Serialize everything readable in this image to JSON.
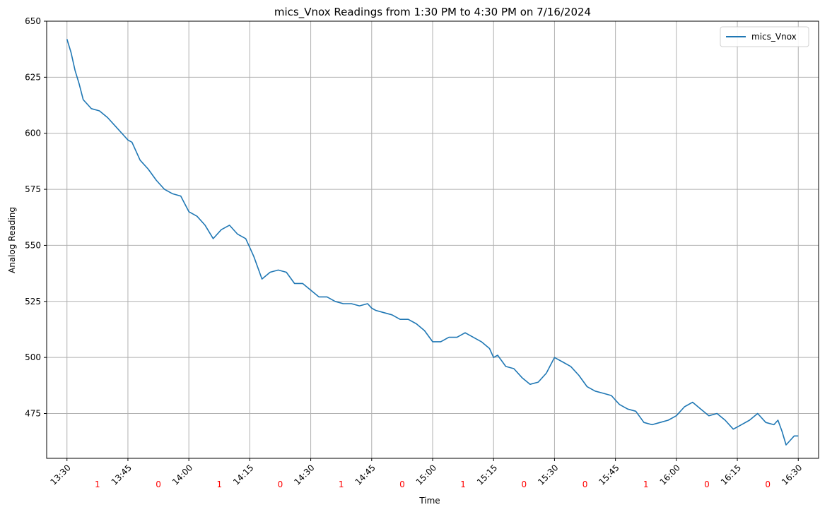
{
  "chart_data": {
    "type": "line",
    "title": "mics_Vnox Readings from 1:30 PM to 4:30 PM on 7/16/2024",
    "xlabel": "Time",
    "ylabel": "Analog Reading",
    "grid": true,
    "legend_position": "top-right",
    "xlim": [
      "13:25",
      "16:35"
    ],
    "ylim": [
      455,
      650
    ],
    "x_ticks": [
      "13:30",
      "13:45",
      "14:00",
      "14:15",
      "14:30",
      "14:45",
      "15:00",
      "15:15",
      "15:30",
      "15:45",
      "16:00",
      "16:15",
      "16:30"
    ],
    "y_ticks": [
      475,
      500,
      525,
      550,
      575,
      600,
      625,
      650
    ],
    "interval_markers": [
      {
        "time": "13:37:30",
        "label": "1"
      },
      {
        "time": "13:52:30",
        "label": "0"
      },
      {
        "time": "14:07:30",
        "label": "1"
      },
      {
        "time": "14:22:30",
        "label": "0"
      },
      {
        "time": "14:37:30",
        "label": "1"
      },
      {
        "time": "14:52:30",
        "label": "0"
      },
      {
        "time": "15:07:30",
        "label": "1"
      },
      {
        "time": "15:22:30",
        "label": "0"
      },
      {
        "time": "15:37:30",
        "label": "0"
      },
      {
        "time": "15:52:30",
        "label": "1"
      },
      {
        "time": "16:07:30",
        "label": "0"
      },
      {
        "time": "16:22:30",
        "label": "0"
      }
    ],
    "series": [
      {
        "name": "mics_Vnox",
        "color": "#1f77b4",
        "x": [
          "13:30",
          "13:31",
          "13:32",
          "13:33",
          "13:34",
          "13:36",
          "13:38",
          "13:40",
          "13:42",
          "13:44",
          "13:45",
          "13:46",
          "13:48",
          "13:50",
          "13:52",
          "13:54",
          "13:56",
          "13:58",
          "14:00",
          "14:02",
          "14:04",
          "14:06",
          "14:08",
          "14:10",
          "14:12",
          "14:14",
          "14:15",
          "14:16",
          "14:18",
          "14:20",
          "14:22",
          "14:24",
          "14:26",
          "14:28",
          "14:30",
          "14:32",
          "14:34",
          "14:36",
          "14:38",
          "14:40",
          "14:42",
          "14:44",
          "14:45",
          "14:46",
          "14:48",
          "14:50",
          "14:52",
          "14:54",
          "14:56",
          "14:58",
          "15:00",
          "15:02",
          "15:04",
          "15:06",
          "15:08",
          "15:10",
          "15:12",
          "15:14",
          "15:15",
          "15:16",
          "15:18",
          "15:20",
          "15:22",
          "15:24",
          "15:26",
          "15:28",
          "15:30",
          "15:32",
          "15:34",
          "15:36",
          "15:38",
          "15:40",
          "15:42",
          "15:44",
          "15:45",
          "15:46",
          "15:48",
          "15:50",
          "15:52",
          "15:54",
          "15:56",
          "15:58",
          "16:00",
          "16:02",
          "16:04",
          "16:06",
          "16:08",
          "16:10",
          "16:12",
          "16:14",
          "16:15",
          "16:16",
          "16:18",
          "16:20",
          "16:22",
          "16:24",
          "16:25",
          "16:26",
          "16:27",
          "16:28",
          "16:29",
          "16:30"
        ],
        "y": [
          642,
          636,
          628,
          622,
          615,
          611,
          610,
          607,
          603,
          599,
          597,
          596,
          588,
          584,
          579,
          575,
          573,
          572,
          565,
          563,
          559,
          553,
          557,
          559,
          555,
          553,
          549,
          545,
          535,
          538,
          539,
          538,
          533,
          533,
          530,
          527,
          527,
          525,
          524,
          524,
          523,
          524,
          522,
          521,
          520,
          519,
          517,
          517,
          515,
          512,
          507,
          507,
          509,
          509,
          511,
          509,
          507,
          504,
          500,
          501,
          496,
          495,
          491,
          488,
          489,
          493,
          500,
          498,
          496,
          492,
          487,
          485,
          484,
          483,
          481,
          479,
          477,
          476,
          471,
          470,
          471,
          472,
          474,
          478,
          480,
          477,
          474,
          475,
          472,
          468,
          469,
          470,
          472,
          475,
          471,
          470,
          472,
          467,
          461,
          463,
          465,
          465
        ]
      }
    ]
  }
}
